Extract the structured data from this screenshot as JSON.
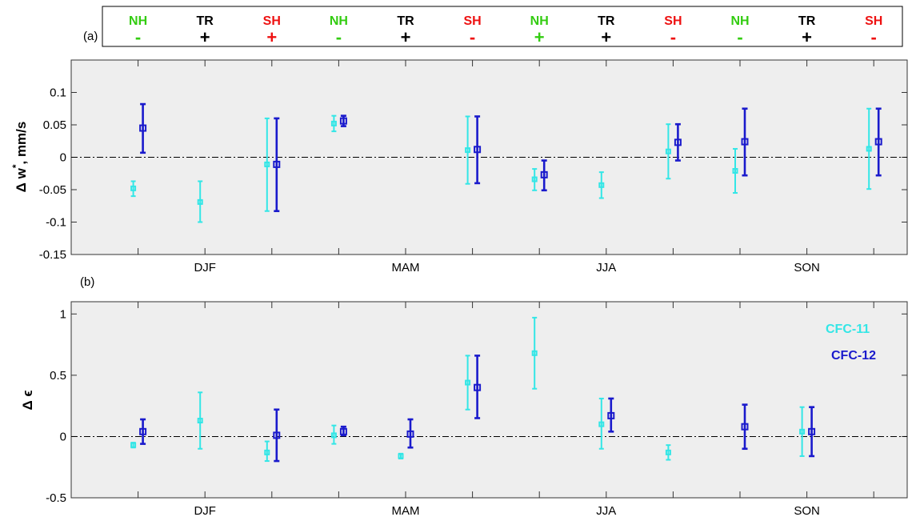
{
  "header": {
    "panel_tag": "(a)",
    "columns": [
      {
        "region": "NH",
        "sign": "-",
        "color": "#33cc11"
      },
      {
        "region": "TR",
        "sign": "+",
        "color": "#000000"
      },
      {
        "region": "SH",
        "sign": "+",
        "color": "#ee1111"
      },
      {
        "region": "NH",
        "sign": "-",
        "color": "#33cc11"
      },
      {
        "region": "TR",
        "sign": "+",
        "color": "#000000"
      },
      {
        "region": "SH",
        "sign": "-",
        "color": "#ee1111"
      },
      {
        "region": "NH",
        "sign": "+",
        "color": "#33cc11"
      },
      {
        "region": "TR",
        "sign": "+",
        "color": "#000000"
      },
      {
        "region": "SH",
        "sign": "-",
        "color": "#ee1111"
      },
      {
        "region": "NH",
        "sign": "-",
        "color": "#33cc11"
      },
      {
        "region": "TR",
        "sign": "+",
        "color": "#000000"
      },
      {
        "region": "SH",
        "sign": "-",
        "color": "#ee1111"
      }
    ]
  },
  "chart_data": [
    {
      "type": "scatter",
      "panel_tag": "",
      "ylabel": "Δ w*, mm/s",
      "ylabel_main": "Δ w",
      "ylabel_sup": "*",
      "ylabel_tail": ", mm/s",
      "ylim": [
        -0.15,
        0.15
      ],
      "yticks": [
        0.1,
        0.05,
        0,
        -0.05,
        -0.1,
        -0.15
      ],
      "ytick_labels": [
        "0.1",
        "0.05",
        "0",
        "-0.05",
        "-0.1",
        "-0.15"
      ],
      "xlim": [
        0,
        12.5
      ],
      "season_labels": [
        "DJF",
        "MAM",
        "JJA",
        "SON"
      ],
      "zero_line": true,
      "series": [
        {
          "name": "CFC-11",
          "color": "#33e6e6",
          "points": [
            {
              "x": 1,
              "y": -0.048,
              "lo": -0.06,
              "hi": -0.037
            },
            {
              "x": 2,
              "y": -0.069,
              "lo": -0.1,
              "hi": -0.037
            },
            {
              "x": 3,
              "y": -0.011,
              "lo": -0.083,
              "hi": 0.06
            },
            {
              "x": 4,
              "y": 0.052,
              "lo": 0.04,
              "hi": 0.064
            },
            {
              "x": 6,
              "y": 0.011,
              "lo": -0.041,
              "hi": 0.063
            },
            {
              "x": 7,
              "y": -0.034,
              "lo": -0.051,
              "hi": -0.018
            },
            {
              "x": 8,
              "y": -0.043,
              "lo": -0.063,
              "hi": -0.023
            },
            {
              "x": 9,
              "y": 0.009,
              "lo": -0.033,
              "hi": 0.051
            },
            {
              "x": 10,
              "y": -0.021,
              "lo": -0.055,
              "hi": 0.013
            },
            {
              "x": 12,
              "y": 0.013,
              "lo": -0.049,
              "hi": 0.075
            }
          ]
        },
        {
          "name": "CFC-12",
          "color": "#1a1acc",
          "points": [
            {
              "x": 1,
              "y": 0.045,
              "lo": 0.007,
              "hi": 0.082
            },
            {
              "x": 3,
              "y": -0.011,
              "lo": -0.083,
              "hi": 0.06
            },
            {
              "x": 4,
              "y": 0.056,
              "lo": 0.048,
              "hi": 0.064
            },
            {
              "x": 6,
              "y": 0.012,
              "lo": -0.04,
              "hi": 0.063
            },
            {
              "x": 7,
              "y": -0.027,
              "lo": -0.051,
              "hi": -0.005
            },
            {
              "x": 9,
              "y": 0.023,
              "lo": -0.005,
              "hi": 0.051
            },
            {
              "x": 10,
              "y": 0.024,
              "lo": -0.028,
              "hi": 0.075
            },
            {
              "x": 12,
              "y": 0.024,
              "lo": -0.028,
              "hi": 0.075
            }
          ]
        }
      ]
    },
    {
      "type": "scatter",
      "panel_tag": "(b)",
      "ylabel": "Δ ϵ",
      "ylabel_main": "Δ ϵ",
      "ylabel_sup": "",
      "ylabel_tail": "",
      "ylim": [
        -0.5,
        1.1
      ],
      "yticks": [
        1,
        0.5,
        0,
        -0.5
      ],
      "ytick_labels": [
        "1",
        "0.5",
        "0",
        "-0.5"
      ],
      "xlim": [
        0,
        12.5
      ],
      "season_labels": [
        "DJF",
        "MAM",
        "JJA",
        "SON"
      ],
      "zero_line": true,
      "legend": {
        "placement": "top-right",
        "entries": [
          "CFC-11",
          "CFC-12"
        ]
      },
      "series": [
        {
          "name": "CFC-11",
          "color": "#33e6e6",
          "points": [
            {
              "x": 1,
              "y": -0.07,
              "lo": -0.09,
              "hi": -0.05
            },
            {
              "x": 2,
              "y": 0.13,
              "lo": -0.1,
              "hi": 0.36
            },
            {
              "x": 3,
              "y": -0.13,
              "lo": -0.2,
              "hi": -0.04
            },
            {
              "x": 4,
              "y": 0.01,
              "lo": -0.06,
              "hi": 0.09
            },
            {
              "x": 5,
              "y": -0.16,
              "lo": -0.18,
              "hi": -0.14
            },
            {
              "x": 6,
              "y": 0.44,
              "lo": 0.22,
              "hi": 0.66
            },
            {
              "x": 7,
              "y": 0.68,
              "lo": 0.39,
              "hi": 0.97
            },
            {
              "x": 8,
              "y": 0.1,
              "lo": -0.1,
              "hi": 0.31
            },
            {
              "x": 9,
              "y": -0.13,
              "lo": -0.19,
              "hi": -0.07
            },
            {
              "x": 11,
              "y": 0.04,
              "lo": -0.16,
              "hi": 0.24
            }
          ]
        },
        {
          "name": "CFC-12",
          "color": "#1a1acc",
          "points": [
            {
              "x": 1,
              "y": 0.04,
              "lo": -0.06,
              "hi": 0.14
            },
            {
              "x": 3,
              "y": 0.01,
              "lo": -0.2,
              "hi": 0.22
            },
            {
              "x": 4,
              "y": 0.04,
              "lo": 0.01,
              "hi": 0.08
            },
            {
              "x": 5,
              "y": 0.02,
              "lo": -0.09,
              "hi": 0.14
            },
            {
              "x": 6,
              "y": 0.4,
              "lo": 0.15,
              "hi": 0.66
            },
            {
              "x": 8,
              "y": 0.17,
              "lo": 0.04,
              "hi": 0.31
            },
            {
              "x": 10,
              "y": 0.08,
              "lo": -0.1,
              "hi": 0.26
            },
            {
              "x": 11,
              "y": 0.04,
              "lo": -0.16,
              "hi": 0.24
            }
          ]
        }
      ]
    }
  ]
}
